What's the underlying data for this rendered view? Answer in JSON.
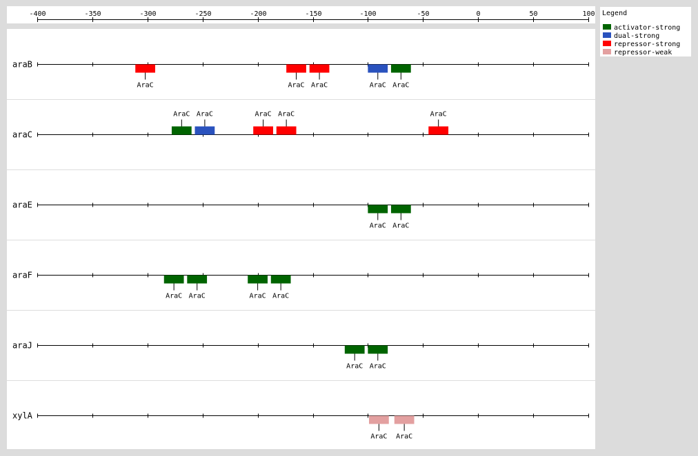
{
  "axis": {
    "min": -400,
    "max": 100,
    "ticks": [
      -400,
      -350,
      -300,
      -250,
      -200,
      -150,
      -100,
      -50,
      0,
      50,
      100
    ],
    "tick_labels": [
      "-400",
      "-350",
      "-300",
      "-250",
      "-200",
      "-150",
      "-100",
      "-50",
      "0",
      "50",
      "100"
    ]
  },
  "legend": {
    "title": "Legend",
    "items": [
      {
        "key": "activator-strong",
        "label": "activator-strong",
        "color": "#006400"
      },
      {
        "key": "dual-strong",
        "label": "dual-strong",
        "color": "#2a52be"
      },
      {
        "key": "repressor-strong",
        "label": "repressor-strong",
        "color": "#ff0000"
      },
      {
        "key": "repressor-weak",
        "label": "repressor-weak",
        "color": "#e3a0a0"
      }
    ]
  },
  "genes": [
    {
      "name": "araB",
      "sites": [
        {
          "start": -311,
          "end": -293,
          "label": "AraC",
          "type": "repressor-strong",
          "strand": "-"
        },
        {
          "start": -174,
          "end": -156,
          "label": "AraC",
          "type": "repressor-strong",
          "strand": "-"
        },
        {
          "start": -153,
          "end": -135,
          "label": "AraC",
          "type": "repressor-strong",
          "strand": "-"
        },
        {
          "start": -100,
          "end": -82,
          "label": "AraC",
          "type": "dual-strong",
          "strand": "-"
        },
        {
          "start": -79,
          "end": -61,
          "label": "AraC",
          "type": "activator-strong",
          "strand": "-"
        }
      ]
    },
    {
      "name": "araC",
      "sites": [
        {
          "start": -278,
          "end": -260,
          "label": "AraC",
          "type": "activator-strong",
          "strand": "+"
        },
        {
          "start": -257,
          "end": -239,
          "label": "AraC",
          "type": "dual-strong",
          "strand": "+"
        },
        {
          "start": -204,
          "end": -186,
          "label": "AraC",
          "type": "repressor-strong",
          "strand": "+"
        },
        {
          "start": -183,
          "end": -165,
          "label": "AraC",
          "type": "repressor-strong",
          "strand": "+"
        },
        {
          "start": -45,
          "end": -27,
          "label": "AraC",
          "type": "repressor-strong",
          "strand": "+"
        }
      ]
    },
    {
      "name": "araE",
      "sites": [
        {
          "start": -100,
          "end": -82,
          "label": "AraC",
          "type": "activator-strong",
          "strand": "-"
        },
        {
          "start": -79,
          "end": -61,
          "label": "AraC",
          "type": "activator-strong",
          "strand": "-"
        }
      ]
    },
    {
      "name": "araF",
      "sites": [
        {
          "start": -285,
          "end": -267,
          "label": "AraC",
          "type": "activator-strong",
          "strand": "-"
        },
        {
          "start": -264,
          "end": -246,
          "label": "AraC",
          "type": "activator-strong",
          "strand": "-"
        },
        {
          "start": -209,
          "end": -191,
          "label": "AraC",
          "type": "activator-strong",
          "strand": "-"
        },
        {
          "start": -188,
          "end": -170,
          "label": "AraC",
          "type": "activator-strong",
          "strand": "-"
        }
      ]
    },
    {
      "name": "araJ",
      "sites": [
        {
          "start": -121,
          "end": -103,
          "label": "AraC",
          "type": "activator-strong",
          "strand": "-"
        },
        {
          "start": -100,
          "end": -82,
          "label": "AraC",
          "type": "activator-strong",
          "strand": "-"
        }
      ]
    },
    {
      "name": "xylA",
      "sites": [
        {
          "start": -99,
          "end": -81,
          "label": "AraC",
          "type": "repressor-weak",
          "strand": "-"
        },
        {
          "start": -76,
          "end": -58,
          "label": "AraC",
          "type": "repressor-weak",
          "strand": "-"
        }
      ]
    }
  ]
}
